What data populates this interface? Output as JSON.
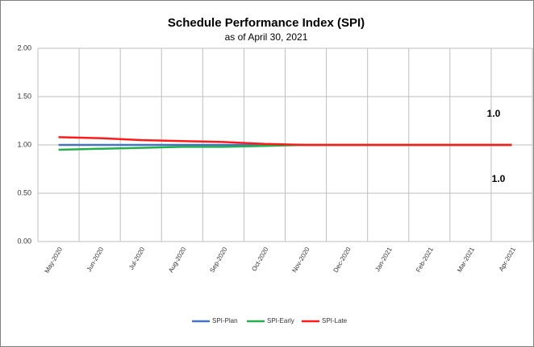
{
  "chart_data": {
    "type": "line",
    "title": "Schedule Performance Index (SPI)",
    "subtitle": "as of April 30, 2021",
    "categories": [
      "May-2020",
      "Jun-2020",
      "Jul-2020",
      "Aug-2020",
      "Sep-2020",
      "Oct-2020",
      "Nov-2020",
      "Dec-2020",
      "Jan-2021",
      "Feb-2021",
      "Mar-2021",
      "Apr-2021"
    ],
    "series": [
      {
        "name": "SPI-Plan",
        "color": "#4472c4",
        "values": [
          1.0,
          1.0,
          1.0,
          1.0,
          1.0,
          1.0,
          1.0,
          1.0,
          1.0,
          1.0,
          1.0,
          1.0
        ]
      },
      {
        "name": "SPI-Early",
        "color": "#22b04c",
        "values": [
          0.95,
          0.96,
          0.97,
          0.98,
          0.98,
          0.99,
          1.0,
          1.0,
          1.0,
          1.0,
          1.0,
          1.0
        ]
      },
      {
        "name": "SPI-Late",
        "color": "#ff1a1a",
        "values": [
          1.08,
          1.07,
          1.05,
          1.04,
          1.03,
          1.01,
          1.0,
          1.0,
          1.0,
          1.0,
          1.0,
          1.0
        ]
      }
    ],
    "ylim": [
      0,
      2
    ],
    "yticks": [
      {
        "value": 0,
        "label": "0.00"
      },
      {
        "value": 0.5,
        "label": "0.50"
      },
      {
        "value": 1,
        "label": "1.00"
      },
      {
        "value": 1.5,
        "label": "1.50"
      },
      {
        "value": 2,
        "label": "2.00"
      }
    ],
    "grid": true,
    "legend": "bottom",
    "annotations": [
      "1.0",
      "1.0"
    ]
  }
}
